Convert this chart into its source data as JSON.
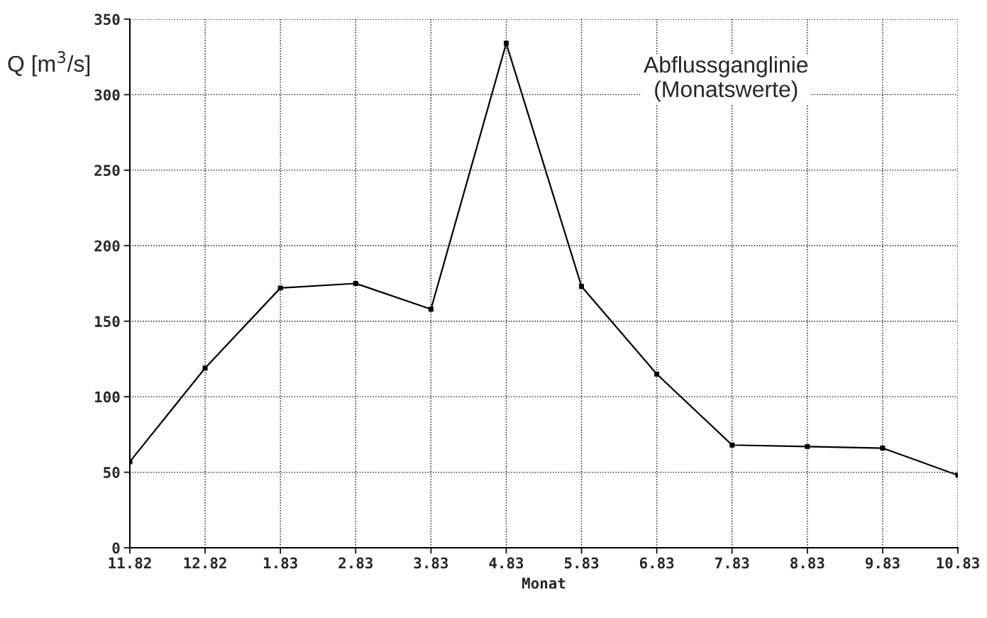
{
  "chart_data": {
    "type": "line",
    "title": "Abflussganglinie\n(Monatswerte)",
    "ylabel": "Q [m$^{3}$/s]",
    "xlabel": "Monat",
    "categories": [
      "11.82",
      "12.82",
      "1.83",
      "2.83",
      "3.83",
      "4.83",
      "5.83",
      "6.83",
      "7.83",
      "8.83",
      "9.83",
      "10.83"
    ],
    "values": [
      57,
      119,
      172,
      175,
      158,
      334,
      173,
      115,
      68,
      67,
      66,
      48
    ],
    "color": "#000000",
    "marker": "square",
    "line_style": "solid",
    "grid": true,
    "ylim": [
      0,
      350
    ],
    "yticks": [
      0,
      50,
      100,
      150,
      200,
      250,
      300,
      350
    ]
  }
}
